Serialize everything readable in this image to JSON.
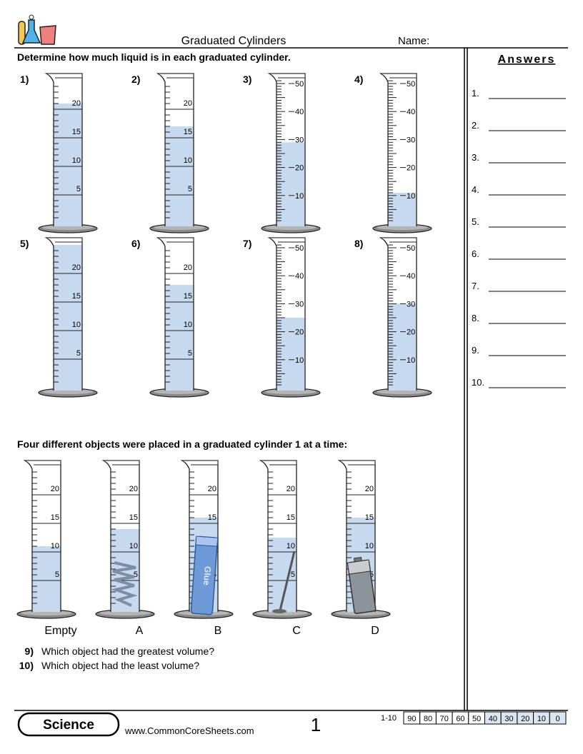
{
  "header": {
    "title": "Graduated Cylinders",
    "name_label": "Name:"
  },
  "instructions": "Determine how much liquid is in each graduated cylinder.",
  "cylinders": [
    {
      "label": "1)",
      "ticks": [
        5,
        10,
        15,
        20
      ],
      "level": 21
    },
    {
      "label": "2)",
      "ticks": [
        5,
        10,
        15,
        20
      ],
      "level": 17
    },
    {
      "label": "3)",
      "ticks": [
        10,
        20,
        30,
        40,
        50
      ],
      "level": 29
    },
    {
      "label": "4)",
      "ticks": [
        10,
        20,
        30,
        40,
        50
      ],
      "level": 11
    },
    {
      "label": "5)",
      "ticks": [
        5,
        10,
        15,
        20
      ],
      "level": 25
    },
    {
      "label": "6)",
      "ticks": [
        5,
        10,
        15,
        20
      ],
      "level": 18
    },
    {
      "label": "7)",
      "ticks": [
        10,
        20,
        30,
        40,
        50
      ],
      "level": 25
    },
    {
      "label": "8)",
      "ticks": [
        10,
        20,
        30,
        40,
        50
      ],
      "level": 30
    }
  ],
  "objects_prompt": "Four different objects were placed in a graduated cylinder 1 at a time:",
  "object_cylinders": [
    {
      "label": "Empty",
      "ticks": [
        5,
        10,
        15,
        20
      ],
      "level": 11
    },
    {
      "label": "A",
      "ticks": [
        5,
        10,
        15,
        20
      ],
      "level": 14
    },
    {
      "label": "B",
      "ticks": [
        5,
        10,
        15,
        20
      ],
      "level": 16
    },
    {
      "label": "C",
      "ticks": [
        5,
        10,
        15,
        20
      ],
      "level": 12.5
    },
    {
      "label": "D",
      "ticks": [
        5,
        10,
        15,
        20
      ],
      "level": 16
    }
  ],
  "questions": [
    {
      "number": "9)",
      "text": "Which object had the greatest volume?"
    },
    {
      "number": "10)",
      "text": "Which object had the least volume?"
    }
  ],
  "answers": {
    "title": "Answers",
    "items": [
      "1.",
      "2.",
      "3.",
      "4.",
      "5.",
      "6.",
      "7.",
      "8.",
      "9.",
      "10."
    ]
  },
  "footer": {
    "subject": "Science",
    "site": "www.CommonCoreSheets.com",
    "page": "1",
    "score_label": "1-10",
    "scores": [
      90,
      80,
      70,
      60,
      50,
      40,
      30,
      20,
      10,
      0
    ]
  }
}
